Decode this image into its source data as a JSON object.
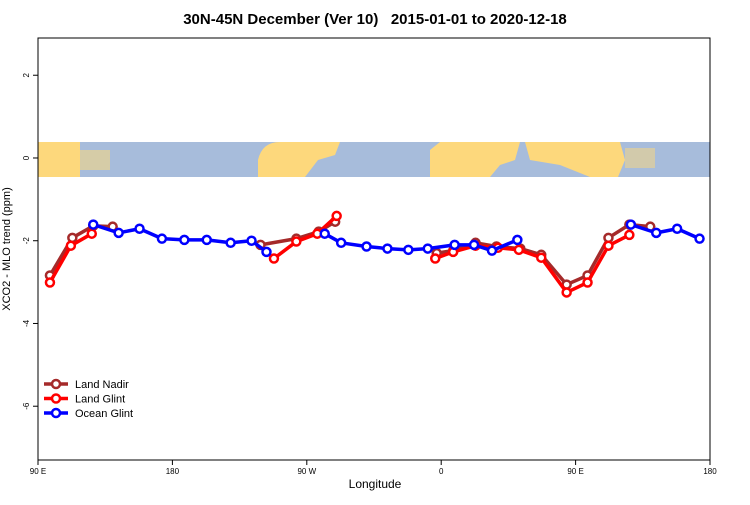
{
  "chart_data": {
    "type": "line",
    "title": "30N-45N December (Ver 10)   2015-01-01 to 2020-12-18",
    "x_label": "Longitude",
    "y_label": "XCO2 - MLO trend (ppm)",
    "xlim": [
      90,
      540
    ],
    "xticks": [
      {
        "value": 90,
        "label": "90 E"
      },
      180,
      {
        "value": 270,
        "label": "90 W"
      },
      {
        "value": 360,
        "label": "0"
      },
      {
        "value": 450,
        "label": "90 E"
      },
      180
    ],
    "ylim": [
      -7.3,
      2.9
    ],
    "yticks": [
      2,
      0,
      -2,
      -4,
      -6
    ],
    "legend": "bottomleft",
    "series": [
      {
        "name": "Land Nadir",
        "color": "#a52a2a",
        "x": [
          98,
          113,
          127,
          140,
          null,
          239,
          263,
          278,
          289,
          null,
          357,
          368,
          383,
          397,
          413,
          427,
          444,
          458,
          472,
          486,
          500
        ],
        "values": [
          -2.84,
          -1.93,
          -1.64,
          -1.66,
          null,
          -2.1,
          -1.95,
          -1.78,
          -1.54,
          null,
          -2.3,
          -2.24,
          -2.05,
          -2.14,
          -2.19,
          -2.34,
          -3.06,
          -2.84,
          -1.93,
          -1.61,
          -1.66
        ]
      },
      {
        "name": "Land Glint",
        "color": "#ff0000",
        "x": [
          98,
          112,
          126,
          null,
          248,
          263,
          277,
          290,
          null,
          356,
          368,
          383,
          398,
          412,
          427,
          444,
          458,
          472,
          486
        ],
        "values": [
          -3.01,
          -2.12,
          -1.83,
          null,
          -2.43,
          -2.02,
          -1.83,
          -1.4,
          null,
          -2.43,
          -2.27,
          -2.12,
          -2.17,
          -2.22,
          -2.41,
          -3.25,
          -3.01,
          -2.12,
          -1.86
        ]
      },
      {
        "name": "Ocean Glint",
        "color": "#0000ff",
        "x": [
          127,
          144,
          158,
          173,
          188,
          203,
          219,
          233,
          243,
          null,
          282,
          293,
          310,
          324,
          338,
          351,
          369,
          382,
          394,
          411,
          null,
          487,
          504,
          518,
          533
        ],
        "values": [
          -1.61,
          -1.81,
          -1.71,
          -1.95,
          -1.98,
          -1.98,
          -2.05,
          -2.0,
          -2.27,
          null,
          -1.83,
          -2.05,
          -2.14,
          -2.19,
          -2.22,
          -2.19,
          -2.1,
          -2.1,
          -2.24,
          -1.98,
          null,
          -1.61,
          -1.81,
          -1.71,
          -1.95
        ]
      }
    ]
  }
}
